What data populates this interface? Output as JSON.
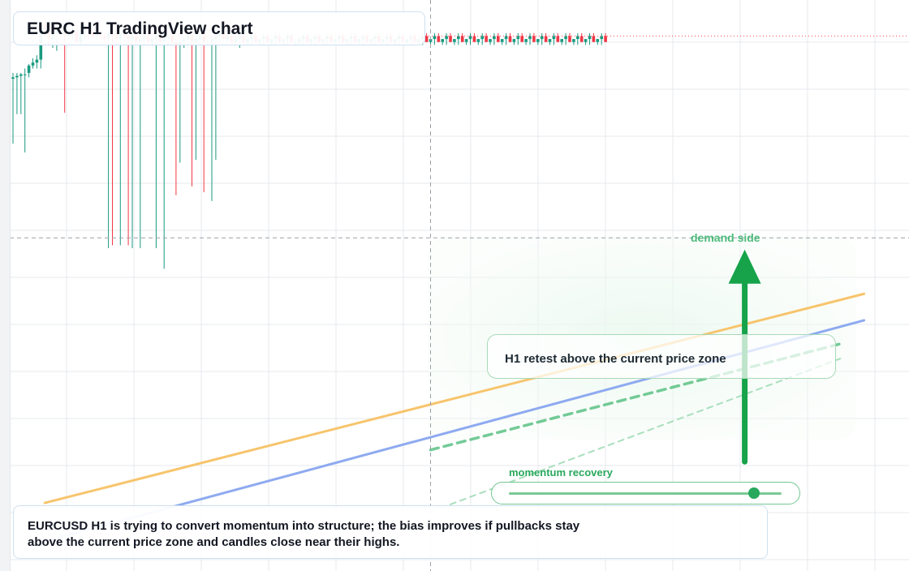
{
  "title": "EURC H1 TradingView chart",
  "annotations": {
    "retest_label": "H1 retest above the current price zone",
    "zone_label": "demand side",
    "momentum_label": "momentum recovery",
    "caption": "EURCUSD H1 is trying to convert momentum into structure; the bias improves if pullbacks stay above the current price zone and candles close near their highs."
  },
  "momentum_level": 0.9,
  "colors": {
    "up": "#1a9a80",
    "down": "#f23645",
    "wick": "#1a9a80",
    "accent": "#2fb166",
    "trend_orange": "#f7c46c",
    "trend_blue": "#8eaaf0",
    "grid": "#e6e9ee",
    "price_line": "#ef4b5e",
    "crosshair": "#9aa0a8"
  },
  "chart_data": {
    "type": "candlestick",
    "timeframe": "H1",
    "grid": true,
    "crosshair": {
      "x_index": 105,
      "price": 32
    },
    "last_price_line": 100.5,
    "ylim": [
      -80,
      110
    ],
    "series": [
      {
        "name": "candles",
        "ohlc": [
          [
            86,
            88,
            64,
            86.5
          ],
          [
            86.5,
            88,
            74,
            87
          ],
          [
            87,
            88,
            74,
            87.5
          ],
          [
            87.5,
            89.5,
            61,
            87.5
          ],
          [
            88,
            91,
            86.5,
            90.5
          ],
          [
            90.5,
            93,
            89.5,
            91.5
          ],
          [
            91.5,
            94,
            89.5,
            92.5
          ],
          [
            92.5,
            105.5,
            89.5,
            104.5
          ],
          [
            104.5,
            106.5,
            100.5,
            102.5
          ],
          [
            102.5,
            103.5,
            97.5,
            99.5
          ],
          [
            99.5,
            102.5,
            96.5,
            101.5
          ],
          [
            101.5,
            103.5,
            95.5,
            102.5
          ],
          [
            102.5,
            104.5,
            99.5,
            101.5
          ],
          [
            101.5,
            102.5,
            74.5,
            100.5
          ],
          [
            100.5,
            103.5,
            99.5,
            101.5
          ],
          [
            101.5,
            103.5,
            99.5,
            102.5
          ],
          [
            102.5,
            104.5,
            98.5,
            98.5
          ],
          [
            98.5,
            102.5,
            97.5,
            101.5
          ],
          [
            101.5,
            103.5,
            99.5,
            102.5
          ],
          [
            102.5,
            103.5,
            99.5,
            101.5
          ],
          [
            101.5,
            102.5,
            99.5,
            100.5
          ],
          [
            100.5,
            102.5,
            99.5,
            101.5
          ],
          [
            101.5,
            102.5,
            99.5,
            100.5
          ],
          [
            100.5,
            101.5,
            98.5,
            99.5
          ],
          [
            99.5,
            102.5,
            28.5,
            101.5
          ],
          [
            101.5,
            102.5,
            29.5,
            100.5
          ],
          [
            100.5,
            101.5,
            98.5,
            99.5
          ],
          [
            99.5,
            102.5,
            29.5,
            101.5
          ],
          [
            101.5,
            102.5,
            98.5,
            100.5
          ],
          [
            100.5,
            101.5,
            29.5,
            99.5
          ],
          [
            99.5,
            101.5,
            28.5,
            100.5
          ],
          [
            100.5,
            101.5,
            98.5,
            98.5
          ],
          [
            98.5,
            100.5,
            28.5,
            99.5
          ],
          [
            99.5,
            101.5,
            97.5,
            100.5
          ],
          [
            100.5,
            101.5,
            98.5,
            98.5
          ],
          [
            98.5,
            99.5,
            97.5,
            99.5
          ],
          [
            99.5,
            101.5,
            28.5,
            100.5
          ],
          [
            100.5,
            101.5,
            98.5,
            98.5
          ],
          [
            98.5,
            100.5,
            21.5,
            99.5
          ],
          [
            99.5,
            101.5,
            97.5,
            100.5
          ],
          [
            100.5,
            101.5,
            97.5,
            98.5
          ],
          [
            98.5,
            99.5,
            46.5,
            97.5
          ],
          [
            97.5,
            99.5,
            57.5,
            98.5
          ],
          [
            98.5,
            100.5,
            96.5,
            99.5
          ],
          [
            99.5,
            101.5,
            97.5,
            100.5
          ],
          [
            100.5,
            101.5,
            49.5,
            98.5
          ],
          [
            98.5,
            100.5,
            58.5,
            99.5
          ],
          [
            99.5,
            101.5,
            97.5,
            100.5
          ],
          [
            100.5,
            101.5,
            47.5,
            98.5
          ],
          [
            98.5,
            99.5,
            97.5,
            98.5
          ],
          [
            98.5,
            100.5,
            44.5,
            99.5
          ],
          [
            99.5,
            101.5,
            58.5,
            100.5
          ],
          [
            100.5,
            102.5,
            98.5,
            101.5
          ],
          [
            101.5,
            102.5,
            99.5,
            99.5
          ],
          [
            99.5,
            101.5,
            98.5,
            100.5
          ],
          [
            100.5,
            101.5,
            98.5,
            98.5
          ],
          [
            98.5,
            100.5,
            97.5,
            99.5
          ],
          [
            99.5,
            101.5,
            96.5,
            100.5
          ],
          [
            100.5,
            101.5,
            98.5,
            98.5
          ],
          [
            98.5,
            99.5,
            97.5,
            99.5
          ],
          [
            99.5,
            101.5,
            97.5,
            100.5
          ],
          [
            100.5,
            101.5,
            98.5,
            98.5
          ],
          [
            98.5,
            99.5,
            97.5,
            99.5
          ],
          [
            99.5,
            101.5,
            97.5,
            100.5
          ],
          [
            100.5,
            101.5,
            98.5,
            98.5
          ],
          [
            98.5,
            99.5,
            97.5,
            99.5
          ],
          [
            99.5,
            101.5,
            97.5,
            100.5
          ],
          [
            100.5,
            101.5,
            98.5,
            98.5
          ],
          [
            98.5,
            99.5,
            97.5,
            99.5
          ],
          [
            99.5,
            101.5,
            97.5,
            100.5
          ],
          [
            100.5,
            101.5,
            98.5,
            98.5
          ],
          [
            98.5,
            99.5,
            97.5,
            98.5
          ],
          [
            98.5,
            100.5,
            97.5,
            99.5
          ],
          [
            99.5,
            101.5,
            97.5,
            100.5
          ],
          [
            100.5,
            101.5,
            98.5,
            98.5
          ],
          [
            98.5,
            99.5,
            97.5,
            99.5
          ],
          [
            99.5,
            101.5,
            97.5,
            100.5
          ],
          [
            100.5,
            101.5,
            98.5,
            98.5
          ],
          [
            98.5,
            99.5,
            97.5,
            99.5
          ],
          [
            99.5,
            101.5,
            97.5,
            100.5
          ],
          [
            100.5,
            101.5,
            98.5,
            98.5
          ],
          [
            98.5,
            99.5,
            97.5,
            99.5
          ],
          [
            99.5,
            101.5,
            97.5,
            100.5
          ],
          [
            100.5,
            101.5,
            98.5,
            98.5
          ],
          [
            98.5,
            99.5,
            97.5,
            99.5
          ],
          [
            99.5,
            101.5,
            97.5,
            100.5
          ],
          [
            100.5,
            101.5,
            98.5,
            98.5
          ],
          [
            98.5,
            99.5,
            97.5,
            99.5
          ],
          [
            99.5,
            101.5,
            97.5,
            100.5
          ],
          [
            100.5,
            101.5,
            98.5,
            98.5
          ],
          [
            98.5,
            99.5,
            97.5,
            99.5
          ],
          [
            99.5,
            101.5,
            97.5,
            100.5
          ],
          [
            100.5,
            101.5,
            98.5,
            98.5
          ],
          [
            98.5,
            99.5,
            97.5,
            99.5
          ],
          [
            99.5,
            101.5,
            97.5,
            100.5
          ],
          [
            100.5,
            101.5,
            98.5,
            98.5
          ],
          [
            98.5,
            99.5,
            97.5,
            99.5
          ],
          [
            99.5,
            101.5,
            97.5,
            100.5
          ],
          [
            100.5,
            101.5,
            98.5,
            98.5
          ],
          [
            98.5,
            99.5,
            97.5,
            99.5
          ],
          [
            99.5,
            101.5,
            97.5,
            100.5
          ],
          [
            100.5,
            101.5,
            98.5,
            98.5
          ],
          [
            98.5,
            99.5,
            97.5,
            99.5
          ],
          [
            99.5,
            101.5,
            97.5,
            100.5
          ],
          [
            100.5,
            101.5,
            98.5,
            98.5
          ],
          [
            98.5,
            99.5,
            97.5,
            99.5
          ],
          [
            99.5,
            101.5,
            97.5,
            100.5
          ],
          [
            100.5,
            101.5,
            98.5,
            98.5
          ],
          [
            98.5,
            99.5,
            97.5,
            99.5
          ],
          [
            99.5,
            101.5,
            97.5,
            100.5
          ],
          [
            100.5,
            101.5,
            98.5,
            98.5
          ],
          [
            98.5,
            99.5,
            97.5,
            99.5
          ],
          [
            99.5,
            101.5,
            97.5,
            100.5
          ],
          [
            100.5,
            101.5,
            98.5,
            98.5
          ],
          [
            98.5,
            99.5,
            97.5,
            99.5
          ],
          [
            99.5,
            101.5,
            97.5,
            100.5
          ],
          [
            100.5,
            101.5,
            98.5,
            98.5
          ],
          [
            98.5,
            99.5,
            97.5,
            99.5
          ],
          [
            99.5,
            101.5,
            97.5,
            100.5
          ],
          [
            100.5,
            101.5,
            98.5,
            98.5
          ],
          [
            98.5,
            99.5,
            97.5,
            99.5
          ],
          [
            99.5,
            101.5,
            97.5,
            100.5
          ],
          [
            100.5,
            101.5,
            98.5,
            98.5
          ],
          [
            98.5,
            99.5,
            97.5,
            99.5
          ],
          [
            99.5,
            101.5,
            97.5,
            100.5
          ],
          [
            100.5,
            101.5,
            98.5,
            98.5
          ],
          [
            98.5,
            99.5,
            97.5,
            99.5
          ],
          [
            99.5,
            101.5,
            97.5,
            100.5
          ],
          [
            100.5,
            101.5,
            98.5,
            98.5
          ],
          [
            98.5,
            99.5,
            97.5,
            99.5
          ],
          [
            99.5,
            101.5,
            97.5,
            100.5
          ],
          [
            100.5,
            101.5,
            98.5,
            98.5
          ],
          [
            98.5,
            99.5,
            97.5,
            99.5
          ],
          [
            99.5,
            101.5,
            97.5,
            100.5
          ],
          [
            100.5,
            101.5,
            98.5,
            98.5
          ],
          [
            98.5,
            99.5,
            97.5,
            99.5
          ],
          [
            99.5,
            101.5,
            97.5,
            100.5
          ],
          [
            100.5,
            101.5,
            98.5,
            98.5
          ],
          [
            98.5,
            99.5,
            97.5,
            99.5
          ],
          [
            99.5,
            101.5,
            97.5,
            100.5
          ],
          [
            100.5,
            101.5,
            98.5,
            98.5
          ],
          [
            98.5,
            99.5,
            97.5,
            99.5
          ],
          [
            99.5,
            101.5,
            97.5,
            100.5
          ],
          [
            100.5,
            101.5,
            98.5,
            98.5
          ],
          [
            98.5,
            99.5,
            97.5,
            99.5
          ],
          [
            99.5,
            101.5,
            97.5,
            100.5
          ],
          [
            100.5,
            101.5,
            98.5,
            98.5
          ],
          [
            98.5,
            99.5,
            97.5,
            99.5
          ],
          [
            99.5,
            101.5,
            97.5,
            100.5
          ],
          [
            100.5,
            101.5,
            98.5,
            98.5
          ]
        ]
      }
    ],
    "trendlines": [
      {
        "color": "orange",
        "from": [
          8,
          -58
        ],
        "to": [
          214,
          13
        ]
      },
      {
        "color": "blue",
        "from": [
          8,
          -71
        ],
        "to": [
          214,
          4
        ]
      },
      {
        "color": "green-dashed",
        "from": [
          105,
          -40
        ],
        "to": [
          208,
          -4
        ]
      },
      {
        "color": "green-dashed-light",
        "from": [
          105,
          -61
        ],
        "to": [
          208,
          -9
        ]
      }
    ],
    "arrow": {
      "direction": "up",
      "x_index": 184,
      "from_price": -44,
      "to_price": 28
    }
  }
}
